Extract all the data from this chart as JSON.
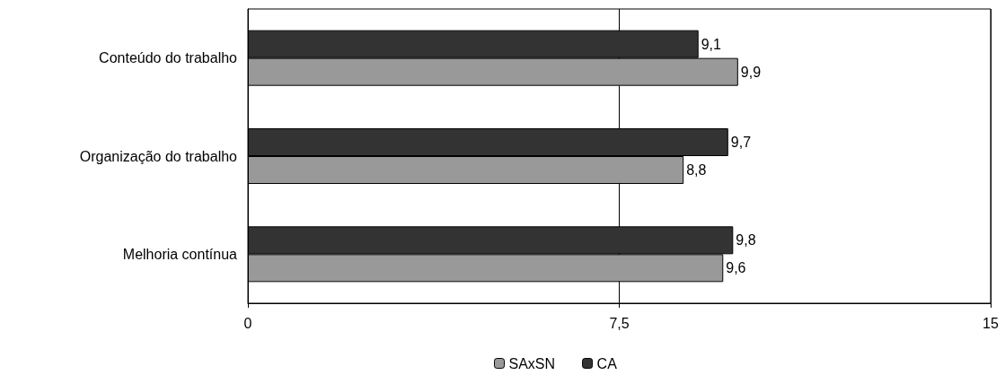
{
  "chart_data": {
    "type": "bar",
    "orientation": "horizontal",
    "categories": [
      "Conteúdo do trabalho",
      "Organização do trabalho",
      "Melhoria contínua"
    ],
    "series": [
      {
        "name": "SAxSN",
        "color": "#999999",
        "values": [
          9.9,
          8.8,
          9.6
        ],
        "value_labels": [
          "9,9",
          "8,8",
          "9,6"
        ]
      },
      {
        "name": "CA",
        "color": "#333333",
        "values": [
          9.1,
          9.7,
          9.8
        ],
        "value_labels": [
          "9,1",
          "9,7",
          "9,8"
        ]
      }
    ],
    "xlim": [
      0,
      15
    ],
    "xticks": [
      0,
      {
        "value": 7.5,
        "label": "7,5"
      },
      15
    ],
    "grid": "x",
    "legend": "bottom"
  }
}
